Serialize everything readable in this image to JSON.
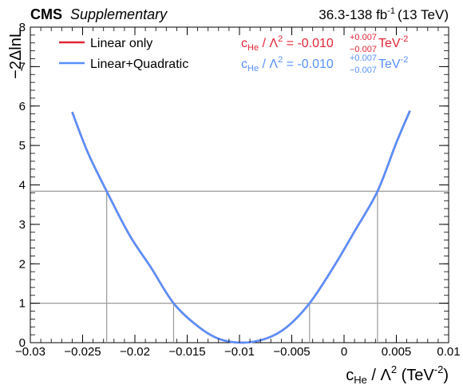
{
  "header": {
    "experiment": "CMS",
    "status": "Supplementary",
    "lumi": "36.3-138 fb",
    "lumi_exp": "-1",
    "energy": "(13 TeV)"
  },
  "axes": {
    "ylabel": "−2ΔlnL",
    "xlabel_main": "c",
    "xlabel_sub": "He",
    "xlabel_rest": " / Λ",
    "xlabel_sup": "2",
    "xlabel_unit": " (TeV",
    "xlabel_unit_exp": "-2",
    "xlabel_close": ")"
  },
  "legend": [
    {
      "label": "Linear only",
      "color": "#e42536"
    },
    {
      "label": "Linear+Quadratic",
      "color": "#5790fc"
    }
  ],
  "results": [
    {
      "coef": "c",
      "coef_sub": "He",
      "mid": " / Λ",
      "mid_sup": "2",
      "eq": " = -0.010",
      "up": "+0.007",
      "down": "−0.007",
      "unit": " TeV",
      "unit_exp": "-2",
      "color": "#e42536"
    },
    {
      "coef": "c",
      "coef_sub": "He",
      "mid": " / Λ",
      "mid_sup": "2",
      "eq": " = -0.010",
      "up": "+0.007",
      "down": "−0.007",
      "unit": " TeV",
      "unit_exp": "-2",
      "color": "#5790fc"
    }
  ],
  "chart_data": {
    "type": "line",
    "xlim": [
      -0.03,
      0.01
    ],
    "ylim": [
      0,
      8
    ],
    "xticks": [
      -0.03,
      -0.025,
      -0.02,
      -0.015,
      -0.01,
      -0.005,
      0,
      0.005,
      0.01
    ],
    "xtick_labels": [
      "−0.03",
      "−0.025",
      "−0.02",
      "−0.015",
      "−0.01",
      "−0.005",
      "0",
      "0.005",
      "0.01"
    ],
    "yticks": [
      0,
      1,
      2,
      3,
      4,
      5,
      6,
      7,
      8
    ],
    "ytick_labels": [
      "0",
      "1",
      "2",
      "3",
      "4",
      "5",
      "6",
      "7",
      "8"
    ],
    "thresholds": [
      1,
      3.84
    ],
    "threshold_crossings": [
      -0.0227,
      -0.0163,
      -0.0033,
      0.0032
    ],
    "series": [
      {
        "name": "Linear only",
        "color": "#e42536",
        "x": [
          -0.026,
          -0.0245,
          -0.0227,
          -0.0205,
          -0.0185,
          -0.0163,
          -0.014,
          -0.012,
          -0.0098,
          -0.0075,
          -0.0055,
          -0.0033,
          -0.001,
          0.001,
          0.0032,
          0.005,
          0.0063
        ],
        "y": [
          5.85,
          4.82,
          3.84,
          2.72,
          1.92,
          1.0,
          0.42,
          0.1,
          0.0,
          0.1,
          0.39,
          1.0,
          1.92,
          2.82,
          3.84,
          5.07,
          5.88
        ]
      },
      {
        "name": "Linear+Quadratic",
        "color": "#5790fc",
        "x": [
          -0.026,
          -0.0245,
          -0.0227,
          -0.0205,
          -0.0185,
          -0.0163,
          -0.014,
          -0.012,
          -0.0098,
          -0.0075,
          -0.0055,
          -0.0033,
          -0.001,
          0.001,
          0.0032,
          0.005,
          0.0063
        ],
        "y": [
          5.85,
          4.82,
          3.84,
          2.72,
          1.92,
          1.0,
          0.42,
          0.1,
          0.0,
          0.1,
          0.39,
          1.0,
          1.92,
          2.82,
          3.84,
          5.07,
          5.88
        ]
      }
    ]
  }
}
